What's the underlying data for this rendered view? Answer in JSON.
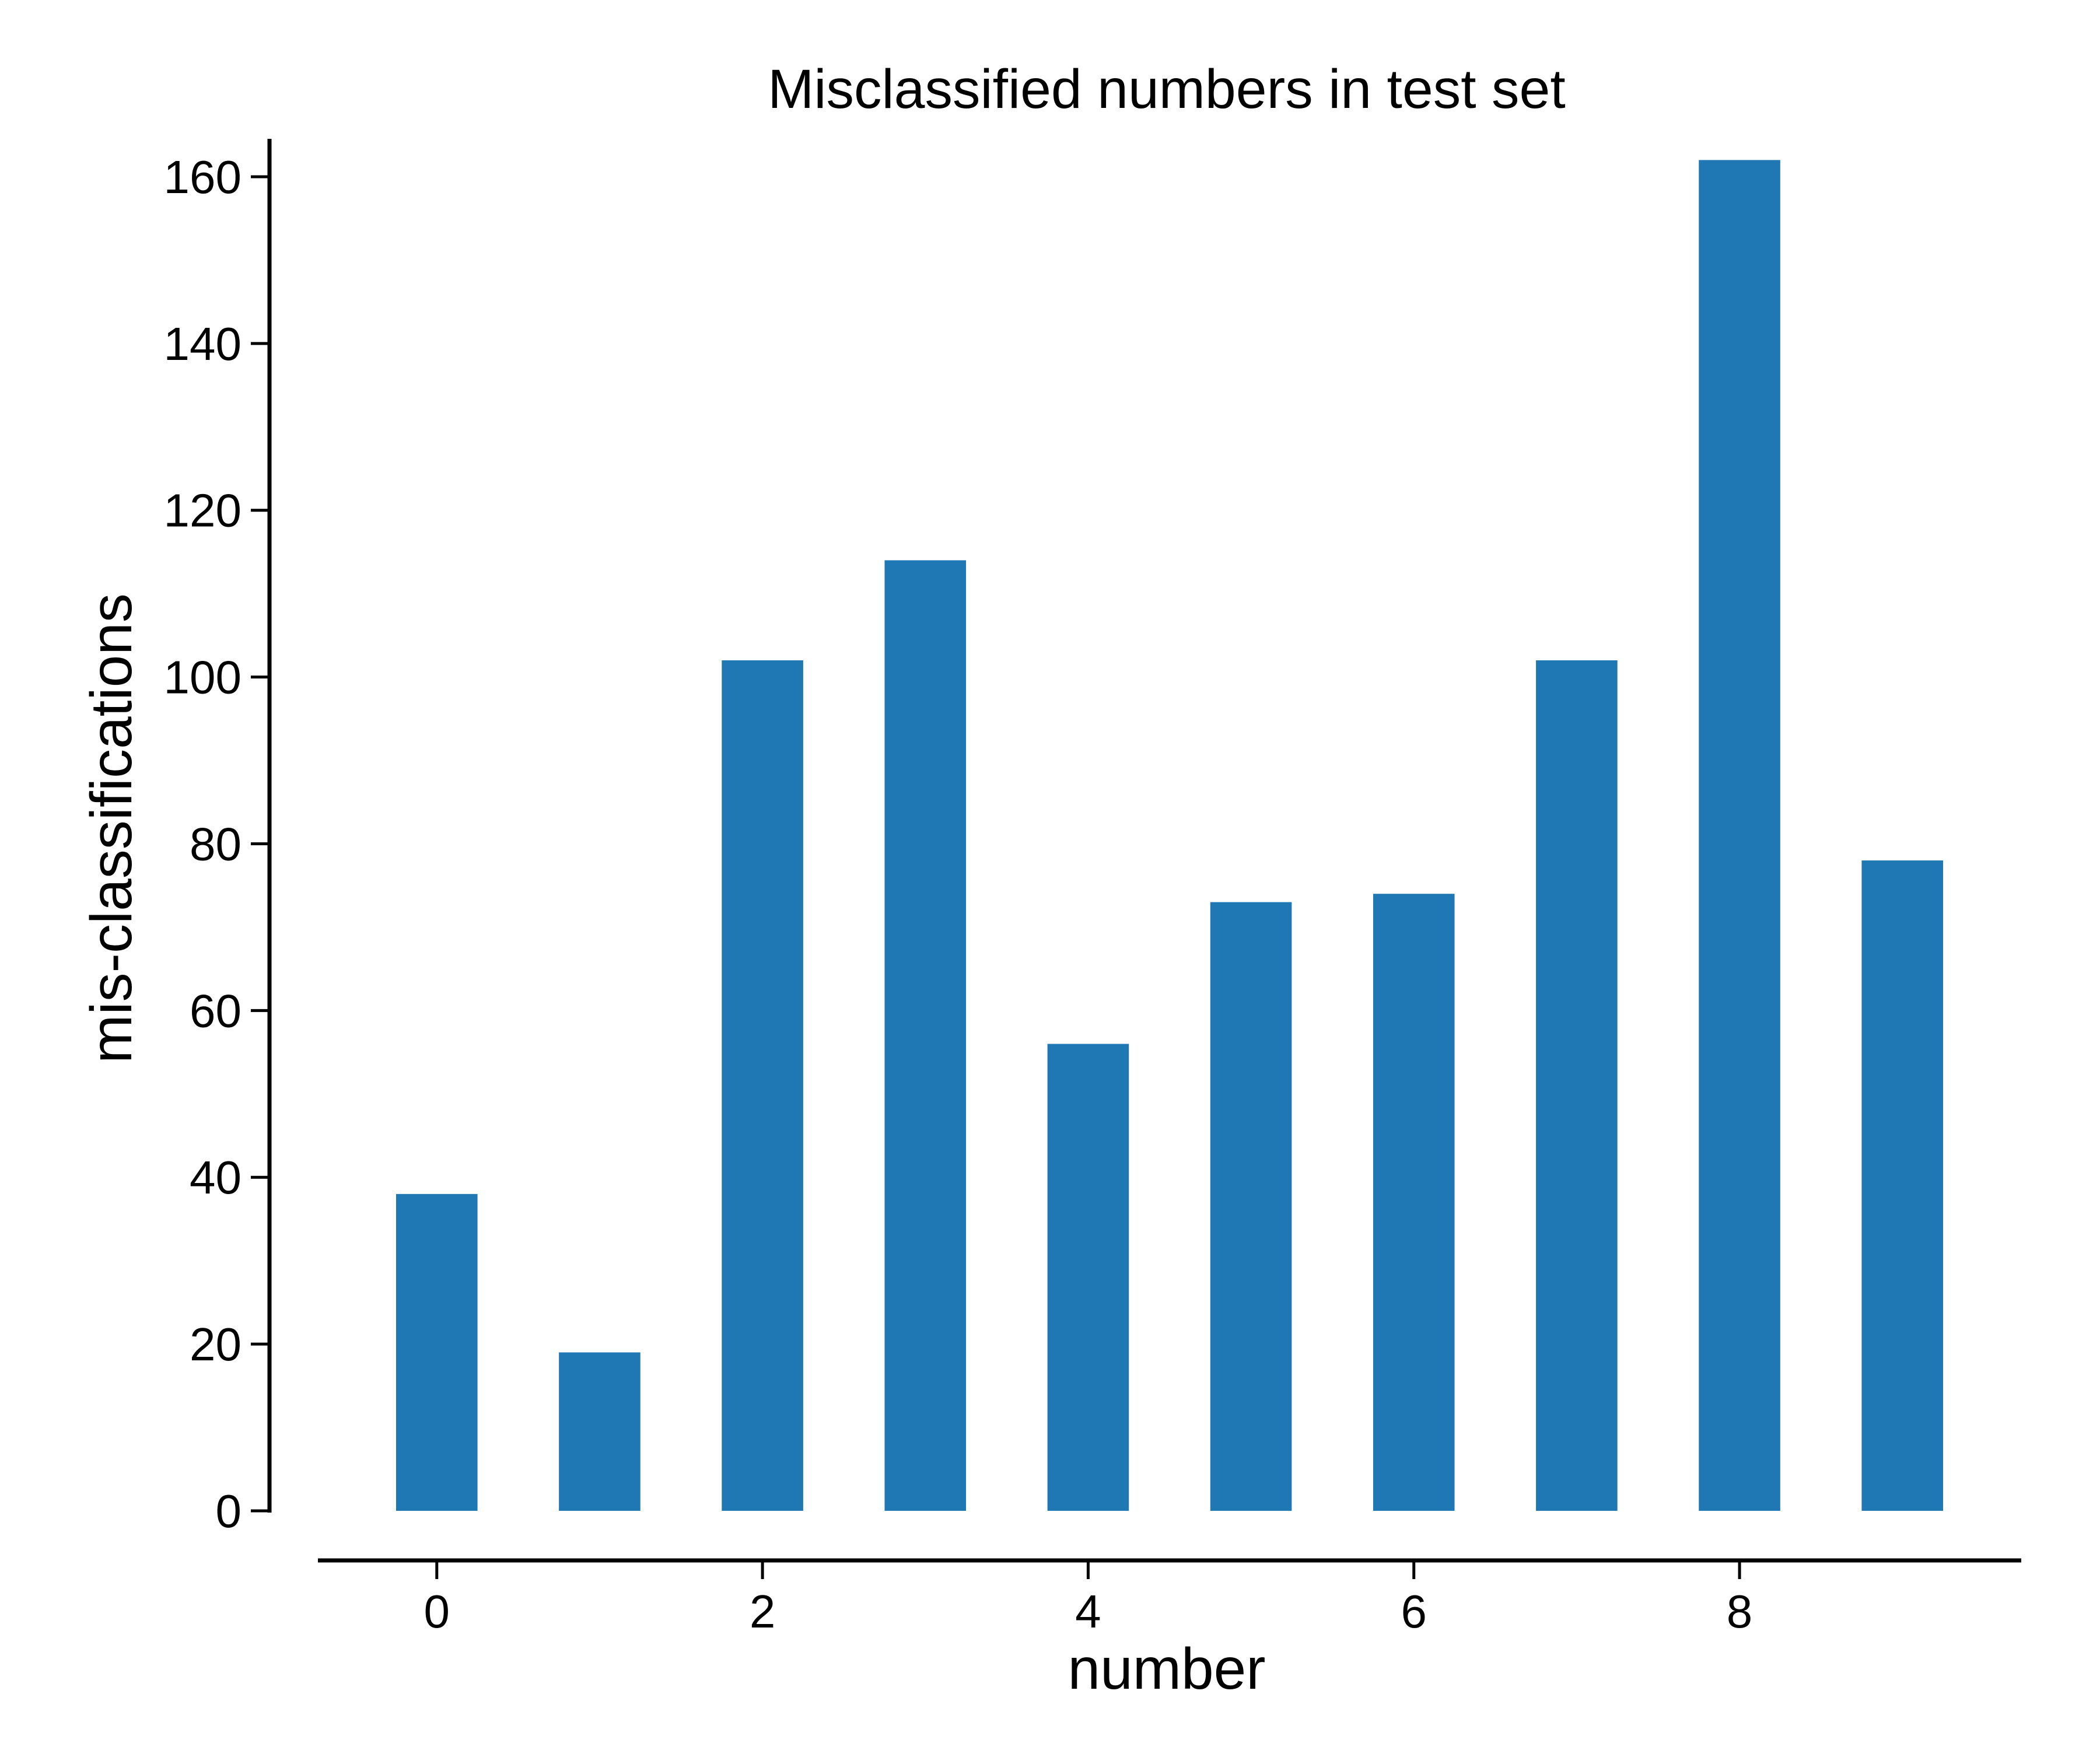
{
  "chart_data": {
    "type": "bar",
    "title": "Misclassified numbers in test set",
    "xlabel": "number",
    "ylabel": "mis-classifications",
    "x": [
      0,
      1,
      2,
      3,
      4,
      5,
      6,
      7,
      8,
      9
    ],
    "values": [
      38,
      19,
      102,
      114,
      56,
      73,
      74,
      102,
      162,
      78
    ],
    "xlim": [
      -0.73,
      9.73
    ],
    "ylim": [
      0,
      170
    ],
    "xticks": [
      0,
      2,
      4,
      6,
      8
    ],
    "yticks": [
      0,
      20,
      40,
      60,
      80,
      100,
      120,
      140,
      160
    ],
    "bar_width": 0.5,
    "bar_color": "#1f77b4",
    "grid": false,
    "legend": null
  }
}
